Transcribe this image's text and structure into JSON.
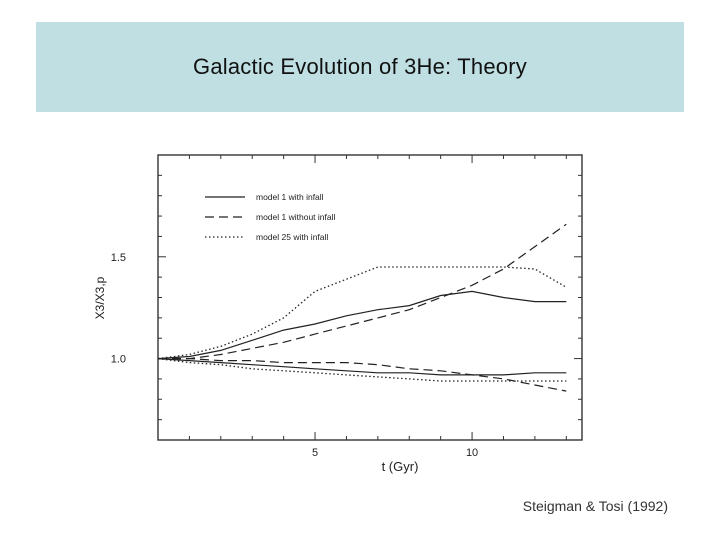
{
  "slide": {
    "title": "Galactic Evolution of 3He: Theory",
    "citation": "Steigman & Tosi (1992)"
  },
  "chart_data": {
    "type": "line",
    "title": "",
    "xlabel": "t (Gyr)",
    "ylabel": "X3/X3,p",
    "xlim": [
      0,
      13.5
    ],
    "ylim": [
      0.6,
      2.0
    ],
    "x_ticks": [
      5,
      10
    ],
    "y_ticks": [
      1.0,
      1.5
    ],
    "grid": false,
    "legend_position": "top-left",
    "series": [
      {
        "name": "model 1 with infall",
        "style": "solid",
        "x": [
          0,
          1,
          2,
          3,
          4,
          5,
          6,
          7,
          8,
          9,
          10,
          11,
          12,
          13
        ],
        "y": [
          1.0,
          1.01,
          1.04,
          1.09,
          1.14,
          1.17,
          1.21,
          1.24,
          1.26,
          1.31,
          1.33,
          1.3,
          1.28,
          1.28
        ]
      },
      {
        "name": "model 1 without infall",
        "style": "dashed",
        "x": [
          0,
          1,
          2,
          3,
          4,
          5,
          6,
          7,
          8,
          9,
          10,
          11,
          12,
          13
        ],
        "y": [
          1.0,
          1.0,
          1.02,
          1.05,
          1.08,
          1.12,
          1.16,
          1.2,
          1.24,
          1.3,
          1.36,
          1.44,
          1.55,
          1.66
        ]
      },
      {
        "name": "model 25 with infall",
        "style": "dotted",
        "x": [
          0,
          1,
          2,
          3,
          4,
          5,
          6,
          7,
          8,
          9,
          10,
          11,
          12,
          13
        ],
        "y": [
          1.0,
          1.02,
          1.06,
          1.12,
          1.2,
          1.33,
          1.39,
          1.45,
          1.45,
          1.45,
          1.45,
          1.45,
          1.44,
          1.35
        ]
      },
      {
        "name": "",
        "style": "solid",
        "x": [
          0,
          1,
          2,
          3,
          4,
          5,
          6,
          7,
          8,
          9,
          10,
          11,
          12,
          13
        ],
        "y": [
          1.0,
          0.99,
          0.98,
          0.97,
          0.96,
          0.95,
          0.94,
          0.93,
          0.93,
          0.92,
          0.92,
          0.92,
          0.93,
          0.93
        ]
      },
      {
        "name": "",
        "style": "dashed",
        "x": [
          0,
          1,
          2,
          3,
          4,
          5,
          6,
          7,
          8,
          9,
          10,
          11,
          12,
          13
        ],
        "y": [
          1.0,
          1.0,
          0.99,
          0.99,
          0.98,
          0.98,
          0.98,
          0.97,
          0.95,
          0.94,
          0.92,
          0.9,
          0.87,
          0.84
        ]
      },
      {
        "name": "",
        "style": "dotted",
        "x": [
          0,
          1,
          2,
          3,
          4,
          5,
          6,
          7,
          8,
          9,
          10,
          11,
          12,
          13
        ],
        "y": [
          1.0,
          0.98,
          0.97,
          0.95,
          0.94,
          0.93,
          0.92,
          0.91,
          0.9,
          0.89,
          0.89,
          0.89,
          0.89,
          0.89
        ]
      }
    ]
  }
}
